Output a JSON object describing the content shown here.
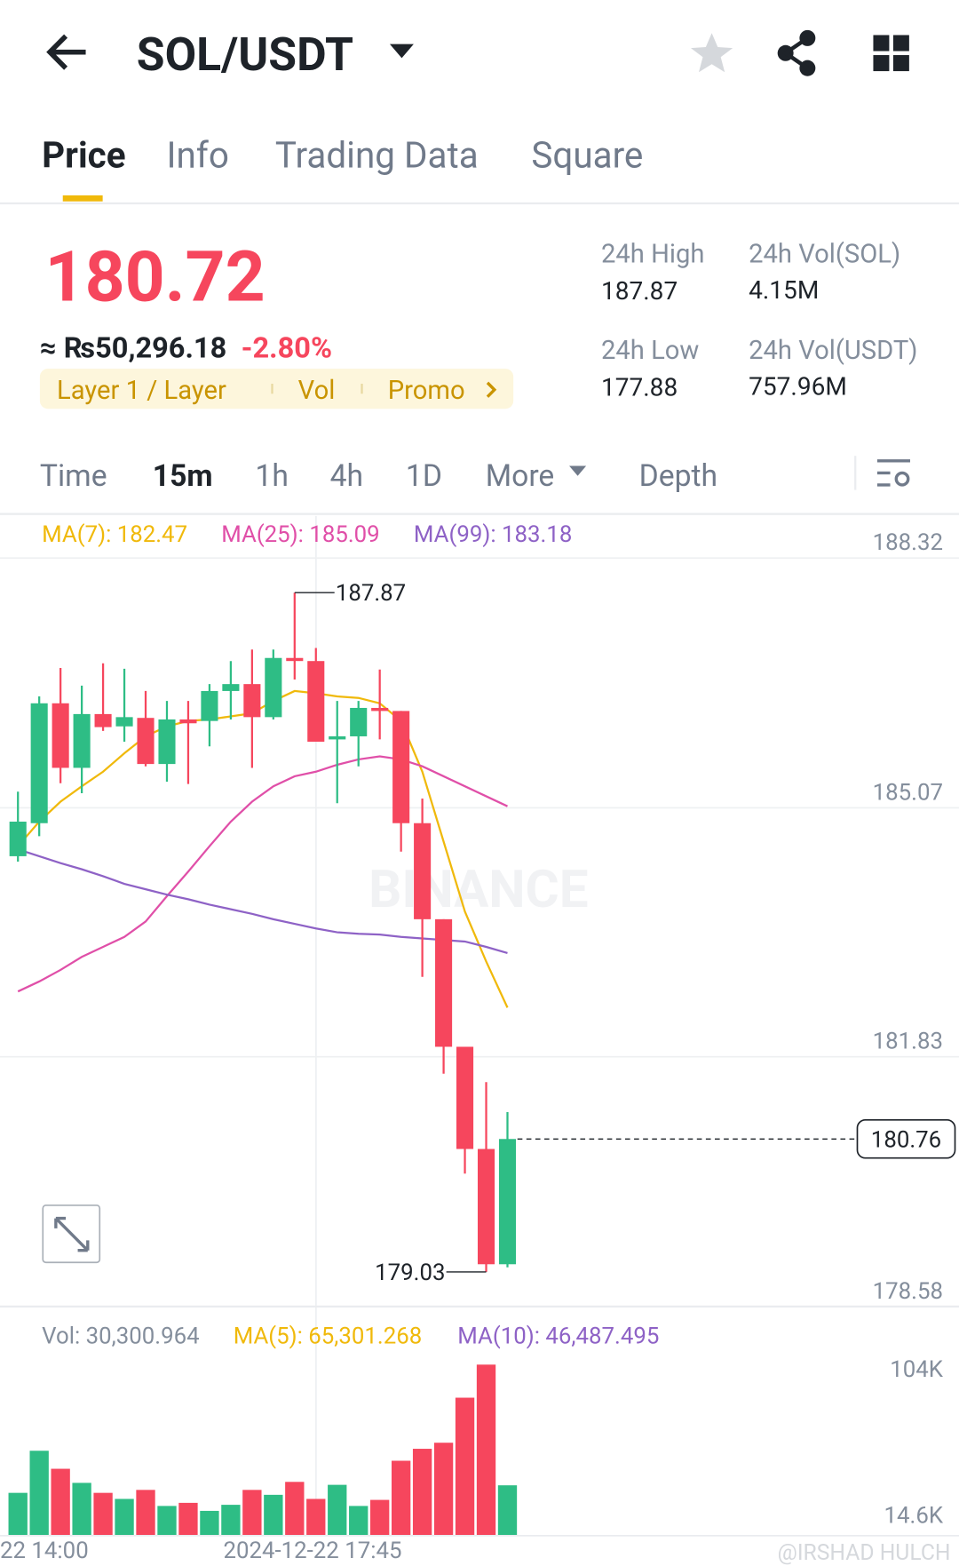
{
  "header": {
    "pair": "SOL/USDT"
  },
  "tabs": [
    "Price",
    "Info",
    "Trading Data",
    "Square"
  ],
  "price": "180.72",
  "fiat": "≈ ₨50,296.18",
  "change": "-2.80%",
  "tags": [
    "Layer 1 / Layer",
    "Vol",
    "Promo"
  ],
  "stats": [
    {
      "label": "24h High",
      "value": "187.87"
    },
    {
      "label": "24h Vol(SOL)",
      "value": "4.15M"
    },
    {
      "label": "24h Low",
      "value": "177.88"
    },
    {
      "label": "24h Vol(USDT)",
      "value": "757.96M"
    }
  ],
  "intervals": [
    "Time",
    "15m",
    "1h",
    "4h",
    "1D",
    "More",
    "Depth"
  ],
  "watermark": "BINANCE",
  "credit": "@IRSHAD HULCH",
  "chart_data": [
    {
      "type": "candlestick",
      "ylim": [
        178.58,
        188.32
      ],
      "yticks": [
        188.32,
        185.07,
        181.83,
        178.58
      ],
      "grid": true,
      "up_color": "#2ebd85",
      "down_color": "#f6465d",
      "x_labels": [
        "22 14:00",
        "2024-12-22 17:45"
      ],
      "candles": [
        {
          "open": 184.44,
          "high": 185.28,
          "low": 184.37,
          "close": 184.89
        },
        {
          "open": 184.87,
          "high": 186.52,
          "low": 184.7,
          "close": 186.43
        },
        {
          "open": 186.43,
          "high": 186.89,
          "low": 185.39,
          "close": 185.59
        },
        {
          "open": 185.59,
          "high": 186.66,
          "low": 185.26,
          "close": 186.29
        },
        {
          "open": 186.29,
          "high": 186.95,
          "low": 186.07,
          "close": 186.12
        },
        {
          "open": 186.13,
          "high": 186.88,
          "low": 185.93,
          "close": 186.25
        },
        {
          "open": 186.24,
          "high": 186.59,
          "low": 185.61,
          "close": 185.64
        },
        {
          "open": 185.64,
          "high": 186.46,
          "low": 185.41,
          "close": 186.22
        },
        {
          "open": 186.22,
          "high": 186.46,
          "low": 185.38,
          "close": 186.17
        },
        {
          "open": 186.2,
          "high": 186.68,
          "low": 185.87,
          "close": 186.59
        },
        {
          "open": 186.59,
          "high": 186.98,
          "low": 186.22,
          "close": 186.68
        },
        {
          "open": 186.68,
          "high": 187.13,
          "low": 185.59,
          "close": 186.25
        },
        {
          "open": 186.25,
          "high": 187.13,
          "low": 186.22,
          "close": 187.02
        },
        {
          "open": 187.02,
          "high": 187.87,
          "low": 186.74,
          "close": 186.98
        },
        {
          "open": 186.98,
          "high": 187.15,
          "low": 185.93,
          "close": 185.93
        },
        {
          "open": 185.96,
          "high": 186.46,
          "low": 185.13,
          "close": 186.0
        },
        {
          "open": 186.0,
          "high": 186.46,
          "low": 185.61,
          "close": 186.37
        },
        {
          "open": 186.37,
          "high": 186.87,
          "low": 185.96,
          "close": 186.33
        },
        {
          "open": 186.33,
          "high": 186.33,
          "low": 184.5,
          "close": 184.87
        },
        {
          "open": 184.87,
          "high": 185.19,
          "low": 182.87,
          "close": 183.62
        },
        {
          "open": 183.62,
          "high": 183.62,
          "low": 181.61,
          "close": 181.96
        },
        {
          "open": 181.96,
          "high": 181.96,
          "low": 180.31,
          "close": 180.63
        },
        {
          "open": 180.63,
          "high": 181.5,
          "low": 179.03,
          "close": 179.13
        },
        {
          "open": 179.13,
          "high": 181.11,
          "low": 179.09,
          "close": 180.76
        }
      ],
      "series": [
        {
          "name": "MA(7): 182.47",
          "color": "#f0b90b",
          "values": [
            184.57,
            184.89,
            185.15,
            185.35,
            185.54,
            185.78,
            186.0,
            186.13,
            186.2,
            186.22,
            186.26,
            186.3,
            186.46,
            186.59,
            186.56,
            186.52,
            186.5,
            186.43,
            186.2,
            185.54,
            184.63,
            183.72,
            183.07,
            182.47
          ]
        },
        {
          "name": "MA(25): 185.09",
          "color": "#e04fa8",
          "values": [
            182.68,
            182.81,
            182.96,
            183.13,
            183.26,
            183.39,
            183.59,
            183.92,
            184.24,
            184.57,
            184.89,
            185.15,
            185.35,
            185.48,
            185.54,
            185.63,
            185.7,
            185.74,
            185.7,
            185.61,
            185.48,
            185.35,
            185.22,
            185.09
          ]
        },
        {
          "name": "MA(99): 183.18",
          "color": "#8e62c6",
          "values": [
            184.53,
            184.44,
            184.35,
            184.27,
            184.18,
            184.08,
            184.01,
            183.94,
            183.88,
            183.81,
            183.75,
            183.69,
            183.62,
            183.56,
            183.5,
            183.45,
            183.43,
            183.42,
            183.39,
            183.37,
            183.35,
            183.33,
            183.26,
            183.18
          ]
        }
      ]
    },
    {
      "type": "bar",
      "title": "Vol: 30,300.964",
      "ylim": [
        0,
        104000
      ],
      "yticks": [
        {
          "value": 14600,
          "label": "14.6K"
        },
        {
          "value": 104000,
          "label": "104K"
        }
      ],
      "legend": [
        {
          "name": "MA(5): 65,301.268",
          "color": "#f0b90b"
        },
        {
          "name": "MA(10): 46,487.495",
          "color": "#8e62c6"
        }
      ],
      "values": [
        25700,
        51400,
        40400,
        31800,
        25700,
        22000,
        27500,
        17700,
        19600,
        14700,
        18400,
        27500,
        24500,
        32400,
        22000,
        30600,
        17700,
        21400,
        45300,
        52600,
        56300,
        83800,
        104000,
        30300.964
      ],
      "colors": [
        "#2ebd85",
        "#2ebd85",
        "#f6465d",
        "#2ebd85",
        "#f6465d",
        "#2ebd85",
        "#f6465d",
        "#2ebd85",
        "#f6465d",
        "#2ebd85",
        "#2ebd85",
        "#f6465d",
        "#2ebd85",
        "#f6465d",
        "#f6465d",
        "#2ebd85",
        "#2ebd85",
        "#f6465d",
        "#f6465d",
        "#f6465d",
        "#f6465d",
        "#f6465d",
        "#f6465d",
        "#2ebd85"
      ]
    }
  ]
}
